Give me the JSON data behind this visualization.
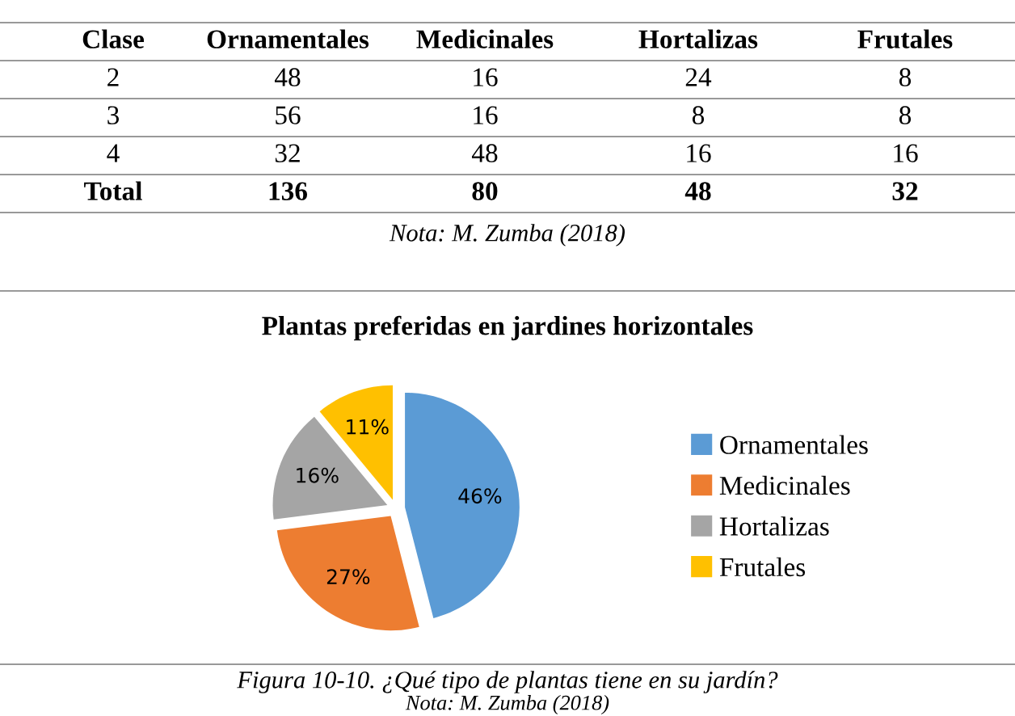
{
  "chart_data": [
    {
      "type": "other",
      "annotations": [
        "Clase",
        "Ornamentales",
        "Medicinales",
        "Hortalizas",
        "Frutales",
        "2",
        "48",
        "16",
        "24",
        "8",
        "3",
        "56",
        "16",
        "8",
        "8",
        "4",
        "32",
        "48",
        "16",
        "16",
        "Total",
        "136",
        "80",
        "48",
        "32",
        "Nota: M. Zumba (2018)"
      ]
    },
    {
      "type": "pie",
      "title": "Plantas preferidas en jardines horizontales",
      "categories": [
        "Ornamentales",
        "Medicinales",
        "Hortalizas",
        "Frutales"
      ],
      "values": [
        46,
        27,
        16,
        11
      ],
      "colors": [
        "#5b9bd5",
        "#ed7d31",
        "#a5a5a5",
        "#ffc000"
      ],
      "value_labels": [
        "46%",
        "27%",
        "16%",
        "11%"
      ],
      "legend": "right",
      "annotations": [
        "Figura 10-10. ¿Qué tipo de plantas tiene en su jardín?",
        "Nota: M. Zumba (2018)"
      ]
    }
  ]
}
